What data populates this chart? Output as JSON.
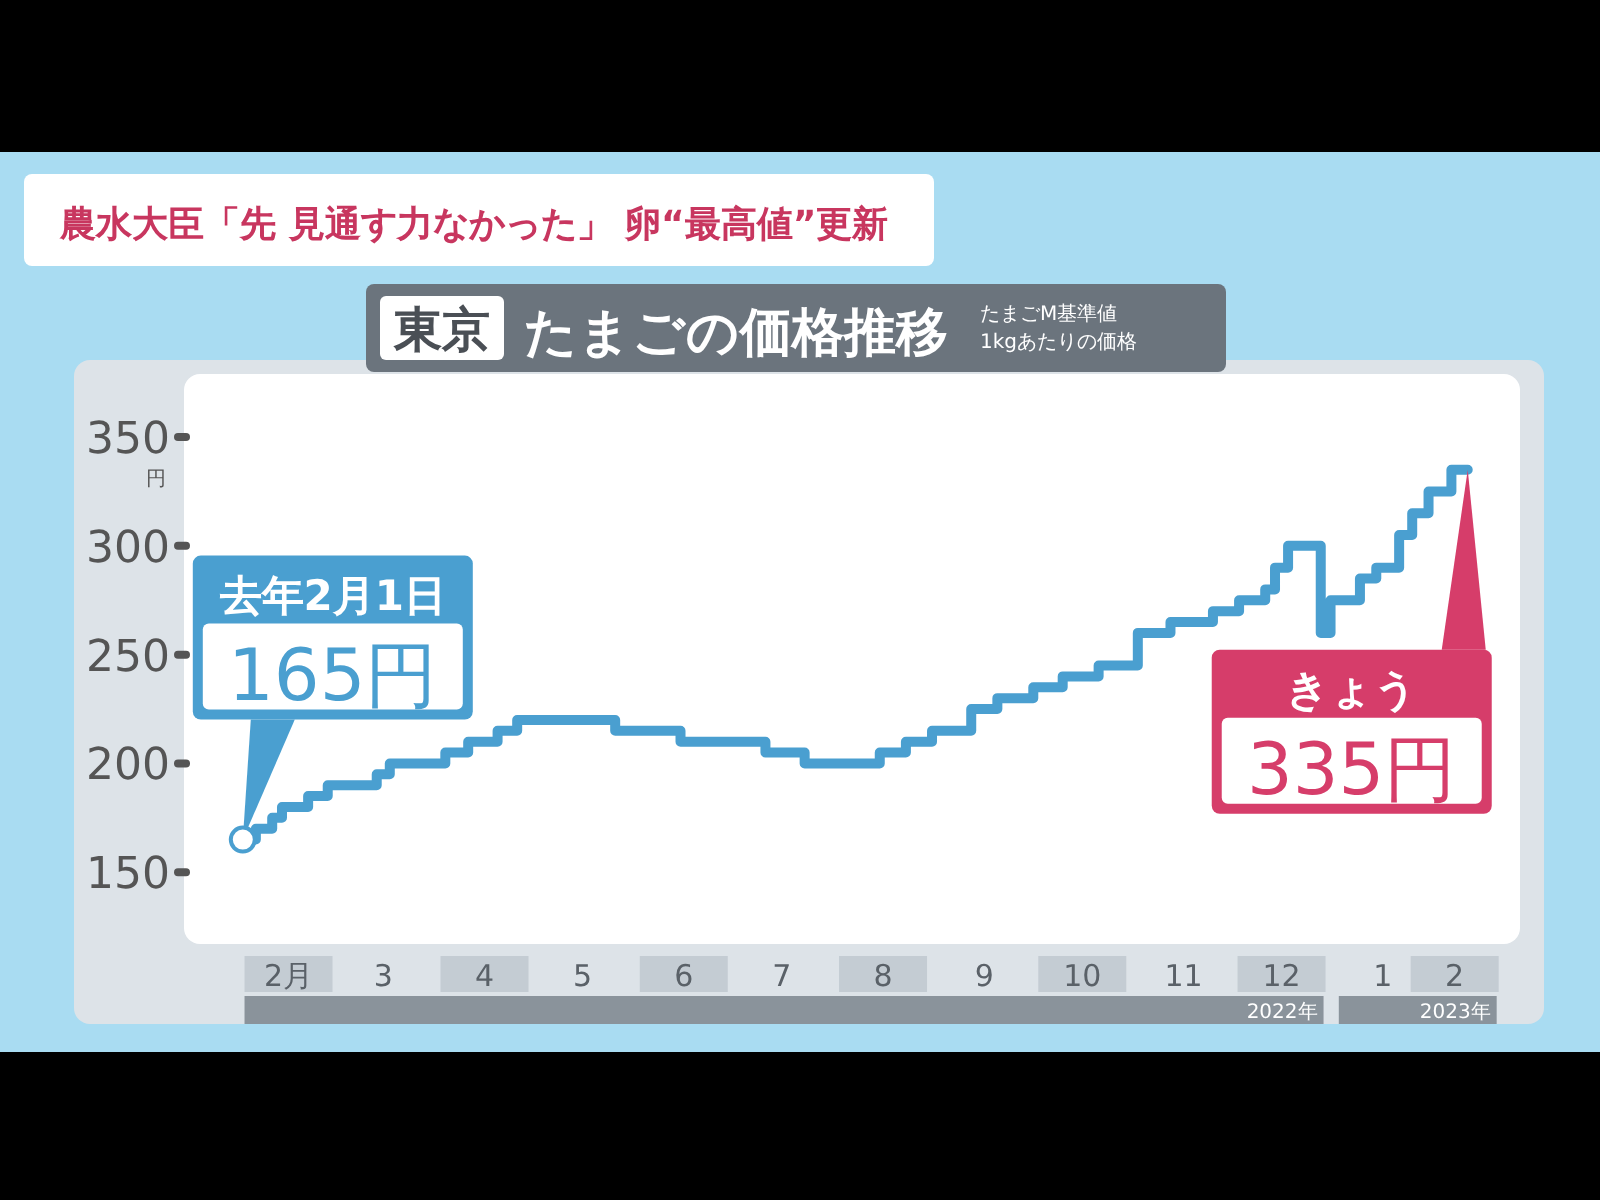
{
  "chart_data": {
    "type": "step",
    "title": "農水大臣「先 見通す力なかった」 卵“最高値”更新",
    "subtitle": "東京 たまごの価格推移",
    "ylabel": "円",
    "x": [
      "2022-02-01",
      "2022-02-05",
      "2022-02-10",
      "2022-02-13",
      "2022-02-21",
      "2022-02-27",
      "2022-03-14",
      "2022-03-18",
      "2022-04-04",
      "2022-04-11",
      "2022-04-20",
      "2022-04-26",
      "2022-05-26",
      "2022-06-15",
      "2022-07-11",
      "2022-07-23",
      "2022-08-15",
      "2022-08-23",
      "2022-08-31",
      "2022-09-12",
      "2022-09-20",
      "2022-10-01",
      "2022-10-10",
      "2022-10-21",
      "2022-11-02",
      "2022-11-12",
      "2022-11-25",
      "2022-12-03",
      "2022-12-11",
      "2022-12-14",
      "2022-12-18",
      "2022-12-28",
      "2022-12-31",
      "2023-01-09",
      "2023-01-14",
      "2023-01-21",
      "2023-01-25",
      "2023-01-30",
      "2023-02-06",
      "2023-02-11"
    ],
    "series": [
      {
        "color": "#4a9fd0",
        "values": [
          165,
          170,
          175,
          180,
          185,
          190,
          195,
          200,
          205,
          210,
          215,
          220,
          215,
          210,
          205,
          200,
          205,
          210,
          215,
          225,
          230,
          235,
          240,
          245,
          260,
          265,
          270,
          275,
          280,
          290,
          300,
          260,
          275,
          285,
          290,
          305,
          315,
          325,
          335,
          335
        ]
      }
    ],
    "xlim": [
      "2022-01-14",
      "2023-02-27"
    ],
    "xticks": [
      {
        "value": "2022-02-15",
        "label": "2月"
      },
      {
        "value": "2022-03-16",
        "label": "3"
      },
      {
        "value": "2022-04-16",
        "label": "4"
      },
      {
        "value": "2022-05-16",
        "label": "5"
      },
      {
        "value": "2022-06-16",
        "label": "6"
      },
      {
        "value": "2022-07-16",
        "label": "7"
      },
      {
        "value": "2022-08-16",
        "label": "8"
      },
      {
        "value": "2022-09-16",
        "label": "9"
      },
      {
        "value": "2022-10-16",
        "label": "10"
      },
      {
        "value": "2022-11-16",
        "label": "11"
      },
      {
        "value": "2022-12-16",
        "label": "12"
      },
      {
        "value": "2023-01-16",
        "label": "1"
      },
      {
        "value": "2023-02-07",
        "label": "2"
      }
    ],
    "ylim": [
      117,
      379
    ],
    "yticks": [
      150,
      200,
      250,
      300,
      350
    ],
    "grid": false,
    "annotations": [
      "たまごM基準値",
      "1kgあたりの価格",
      {
        "text": "去年2月1日\n165円",
        "x": "2022-02-01",
        "y": 165
      },
      {
        "text": "きょう\n335円",
        "x": "2023-02-11",
        "y": 335
      },
      "2022年",
      "2023年"
    ]
  }
}
